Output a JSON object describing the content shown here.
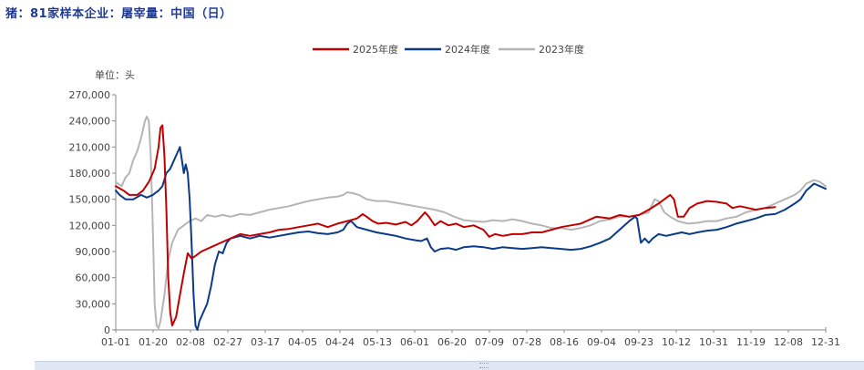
{
  "title": "猪：81家样本企业：屠宰量：中国（日）",
  "chart_data": {
    "type": "line",
    "unit_label": "单位：头",
    "x_tick_labels": [
      "01-01",
      "01-20",
      "02-08",
      "02-27",
      "03-17",
      "04-05",
      "04-24",
      "05-13",
      "06-01",
      "06-20",
      "07-09",
      "07-28",
      "08-16",
      "09-04",
      "09-23",
      "10-12",
      "10-31",
      "11-19",
      "12-08",
      "12-31"
    ],
    "ylim": [
      0,
      270000
    ],
    "y_ticks": [
      0,
      30000,
      60000,
      90000,
      120000,
      150000,
      180000,
      210000,
      240000,
      270000
    ],
    "y_tick_labels": [
      "0",
      "30,000",
      "60,000",
      "90,000",
      "120,000",
      "150,000",
      "180,000",
      "210,000",
      "240,000",
      "270,000"
    ],
    "xlim_days": [
      1,
      366
    ],
    "legend_position": "top-center",
    "series": [
      {
        "name": "2025年度",
        "color": "#c00000",
        "points": [
          [
            1,
            165000
          ],
          [
            5,
            160000
          ],
          [
            8,
            155000
          ],
          [
            12,
            155000
          ],
          [
            15,
            160000
          ],
          [
            18,
            170000
          ],
          [
            21,
            185000
          ],
          [
            23,
            210000
          ],
          [
            24,
            232000
          ],
          [
            25,
            235000
          ],
          [
            26,
            200000
          ],
          [
            27,
            140000
          ],
          [
            28,
            60000
          ],
          [
            29,
            20000
          ],
          [
            30,
            5000
          ],
          [
            32,
            15000
          ],
          [
            34,
            40000
          ],
          [
            36,
            65000
          ],
          [
            38,
            88000
          ],
          [
            40,
            82000
          ],
          [
            42,
            85000
          ],
          [
            45,
            90000
          ],
          [
            50,
            95000
          ],
          [
            55,
            100000
          ],
          [
            60,
            105000
          ],
          [
            65,
            110000
          ],
          [
            70,
            108000
          ],
          [
            75,
            110000
          ],
          [
            80,
            112000
          ],
          [
            85,
            115000
          ],
          [
            90,
            116000
          ],
          [
            95,
            118000
          ],
          [
            100,
            120000
          ],
          [
            105,
            122000
          ],
          [
            110,
            118000
          ],
          [
            115,
            122000
          ],
          [
            120,
            125000
          ],
          [
            125,
            128000
          ],
          [
            128,
            133000
          ],
          [
            130,
            130000
          ],
          [
            133,
            125000
          ],
          [
            136,
            122000
          ],
          [
            140,
            123000
          ],
          [
            145,
            121000
          ],
          [
            150,
            124000
          ],
          [
            153,
            120000
          ],
          [
            156,
            125000
          ],
          [
            160,
            135000
          ],
          [
            162,
            130000
          ],
          [
            165,
            120000
          ],
          [
            168,
            125000
          ],
          [
            172,
            120000
          ],
          [
            176,
            122000
          ],
          [
            180,
            118000
          ],
          [
            185,
            120000
          ],
          [
            190,
            115000
          ],
          [
            193,
            107000
          ],
          [
            196,
            110000
          ],
          [
            200,
            108000
          ],
          [
            205,
            110000
          ],
          [
            210,
            110000
          ],
          [
            215,
            112000
          ],
          [
            220,
            112000
          ],
          [
            225,
            115000
          ],
          [
            230,
            118000
          ],
          [
            235,
            120000
          ],
          [
            240,
            122000
          ],
          [
            243,
            125000
          ],
          [
            248,
            130000
          ],
          [
            255,
            128000
          ],
          [
            260,
            132000
          ],
          [
            265,
            130000
          ],
          [
            270,
            132000
          ],
          [
            275,
            138000
          ],
          [
            280,
            145000
          ],
          [
            283,
            150000
          ],
          [
            286,
            155000
          ],
          [
            288,
            150000
          ],
          [
            290,
            130000
          ],
          [
            293,
            130000
          ],
          [
            296,
            140000
          ],
          [
            300,
            145000
          ],
          [
            305,
            148000
          ],
          [
            310,
            147000
          ],
          [
            315,
            145000
          ],
          [
            318,
            140000
          ],
          [
            322,
            142000
          ],
          [
            326,
            140000
          ],
          [
            330,
            138000
          ],
          [
            335,
            140000
          ],
          [
            340,
            141000
          ]
        ]
      },
      {
        "name": "2024年度",
        "color": "#0b3a86",
        "points": [
          [
            1,
            160000
          ],
          [
            3,
            155000
          ],
          [
            6,
            150000
          ],
          [
            10,
            150000
          ],
          [
            14,
            155000
          ],
          [
            17,
            152000
          ],
          [
            20,
            155000
          ],
          [
            23,
            160000
          ],
          [
            25,
            165000
          ],
          [
            27,
            180000
          ],
          [
            29,
            185000
          ],
          [
            31,
            195000
          ],
          [
            33,
            205000
          ],
          [
            34,
            210000
          ],
          [
            35,
            195000
          ],
          [
            36,
            180000
          ],
          [
            37,
            190000
          ],
          [
            38,
            180000
          ],
          [
            39,
            150000
          ],
          [
            40,
            100000
          ],
          [
            41,
            40000
          ],
          [
            42,
            5000
          ],
          [
            43,
            0
          ],
          [
            44,
            10000
          ],
          [
            46,
            20000
          ],
          [
            48,
            30000
          ],
          [
            50,
            50000
          ],
          [
            52,
            75000
          ],
          [
            54,
            90000
          ],
          [
            56,
            88000
          ],
          [
            58,
            100000
          ],
          [
            60,
            105000
          ],
          [
            65,
            108000
          ],
          [
            70,
            105000
          ],
          [
            75,
            108000
          ],
          [
            80,
            106000
          ],
          [
            85,
            108000
          ],
          [
            90,
            110000
          ],
          [
            95,
            112000
          ],
          [
            100,
            113000
          ],
          [
            105,
            111000
          ],
          [
            110,
            110000
          ],
          [
            115,
            112000
          ],
          [
            118,
            115000
          ],
          [
            120,
            122000
          ],
          [
            122,
            125000
          ],
          [
            125,
            118000
          ],
          [
            130,
            115000
          ],
          [
            135,
            112000
          ],
          [
            140,
            110000
          ],
          [
            145,
            108000
          ],
          [
            150,
            105000
          ],
          [
            155,
            103000
          ],
          [
            158,
            102000
          ],
          [
            161,
            105000
          ],
          [
            163,
            95000
          ],
          [
            165,
            90000
          ],
          [
            168,
            93000
          ],
          [
            172,
            94000
          ],
          [
            176,
            92000
          ],
          [
            180,
            95000
          ],
          [
            185,
            96000
          ],
          [
            190,
            95000
          ],
          [
            195,
            93000
          ],
          [
            200,
            95000
          ],
          [
            205,
            94000
          ],
          [
            210,
            93000
          ],
          [
            215,
            94000
          ],
          [
            220,
            95000
          ],
          [
            225,
            94000
          ],
          [
            230,
            93000
          ],
          [
            235,
            92000
          ],
          [
            240,
            93000
          ],
          [
            245,
            96000
          ],
          [
            250,
            100000
          ],
          [
            255,
            105000
          ],
          [
            260,
            115000
          ],
          [
            265,
            125000
          ],
          [
            268,
            130000
          ],
          [
            269,
            128000
          ],
          [
            271,
            100000
          ],
          [
            273,
            105000
          ],
          [
            275,
            100000
          ],
          [
            277,
            105000
          ],
          [
            280,
            110000
          ],
          [
            284,
            108000
          ],
          [
            288,
            110000
          ],
          [
            292,
            112000
          ],
          [
            296,
            110000
          ],
          [
            300,
            112000
          ],
          [
            305,
            114000
          ],
          [
            310,
            115000
          ],
          [
            315,
            118000
          ],
          [
            320,
            122000
          ],
          [
            325,
            125000
          ],
          [
            330,
            128000
          ],
          [
            335,
            132000
          ],
          [
            340,
            133000
          ],
          [
            345,
            138000
          ],
          [
            350,
            145000
          ],
          [
            353,
            150000
          ],
          [
            356,
            160000
          ],
          [
            360,
            168000
          ],
          [
            363,
            165000
          ],
          [
            366,
            162000
          ]
        ]
      },
      {
        "name": "2023年度",
        "color": "#b5b5b5",
        "points": [
          [
            1,
            170000
          ],
          [
            4,
            165000
          ],
          [
            6,
            175000
          ],
          [
            8,
            180000
          ],
          [
            10,
            195000
          ],
          [
            12,
            205000
          ],
          [
            14,
            220000
          ],
          [
            15,
            230000
          ],
          [
            16,
            240000
          ],
          [
            17,
            245000
          ],
          [
            18,
            240000
          ],
          [
            19,
            200000
          ],
          [
            20,
            120000
          ],
          [
            21,
            30000
          ],
          [
            22,
            5000
          ],
          [
            23,
            2000
          ],
          [
            24,
            10000
          ],
          [
            26,
            40000
          ],
          [
            28,
            80000
          ],
          [
            30,
            100000
          ],
          [
            33,
            115000
          ],
          [
            36,
            120000
          ],
          [
            39,
            125000
          ],
          [
            42,
            128000
          ],
          [
            45,
            125000
          ],
          [
            48,
            132000
          ],
          [
            52,
            130000
          ],
          [
            56,
            132000
          ],
          [
            60,
            130000
          ],
          [
            65,
            133000
          ],
          [
            70,
            132000
          ],
          [
            75,
            135000
          ],
          [
            80,
            138000
          ],
          [
            85,
            140000
          ],
          [
            90,
            142000
          ],
          [
            95,
            145000
          ],
          [
            100,
            148000
          ],
          [
            105,
            150000
          ],
          [
            110,
            152000
          ],
          [
            115,
            153000
          ],
          [
            118,
            155000
          ],
          [
            120,
            158000
          ],
          [
            123,
            157000
          ],
          [
            126,
            155000
          ],
          [
            130,
            150000
          ],
          [
            135,
            148000
          ],
          [
            140,
            148000
          ],
          [
            145,
            146000
          ],
          [
            150,
            144000
          ],
          [
            155,
            142000
          ],
          [
            160,
            140000
          ],
          [
            165,
            138000
          ],
          [
            170,
            135000
          ],
          [
            175,
            130000
          ],
          [
            180,
            126000
          ],
          [
            185,
            125000
          ],
          [
            190,
            124000
          ],
          [
            195,
            126000
          ],
          [
            200,
            125000
          ],
          [
            205,
            127000
          ],
          [
            210,
            125000
          ],
          [
            215,
            122000
          ],
          [
            220,
            120000
          ],
          [
            225,
            117000
          ],
          [
            230,
            117000
          ],
          [
            235,
            115000
          ],
          [
            240,
            117000
          ],
          [
            245,
            120000
          ],
          [
            250,
            125000
          ],
          [
            255,
            127000
          ],
          [
            260,
            130000
          ],
          [
            265,
            130000
          ],
          [
            270,
            132000
          ],
          [
            275,
            135000
          ],
          [
            278,
            150000
          ],
          [
            280,
            148000
          ],
          [
            283,
            135000
          ],
          [
            286,
            130000
          ],
          [
            290,
            125000
          ],
          [
            295,
            122000
          ],
          [
            300,
            123000
          ],
          [
            305,
            125000
          ],
          [
            310,
            125000
          ],
          [
            315,
            128000
          ],
          [
            320,
            130000
          ],
          [
            325,
            135000
          ],
          [
            330,
            138000
          ],
          [
            335,
            140000
          ],
          [
            340,
            145000
          ],
          [
            345,
            150000
          ],
          [
            350,
            155000
          ],
          [
            353,
            160000
          ],
          [
            356,
            168000
          ],
          [
            360,
            172000
          ],
          [
            363,
            170000
          ],
          [
            366,
            165000
          ]
        ]
      }
    ]
  }
}
